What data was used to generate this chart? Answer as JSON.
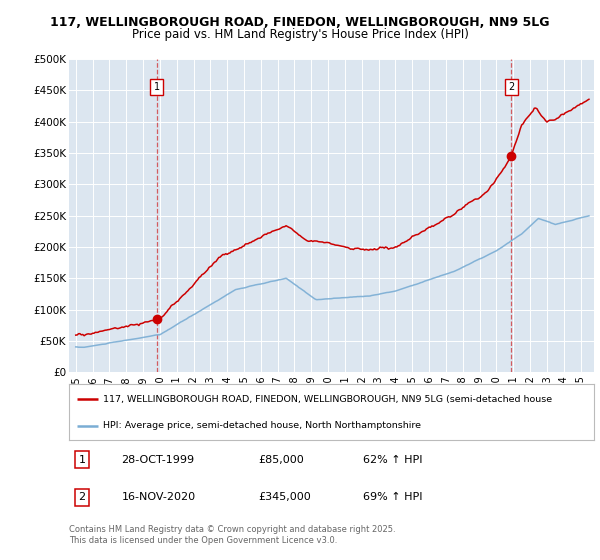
{
  "title_line1": "117, WELLINGBOROUGH ROAD, FINEDON, WELLINGBOROUGH, NN9 5LG",
  "title_line2": "Price paid vs. HM Land Registry's House Price Index (HPI)",
  "plot_bg_color": "#dce6f0",
  "ylim": [
    0,
    500000
  ],
  "yticks": [
    0,
    50000,
    100000,
    150000,
    200000,
    250000,
    300000,
    350000,
    400000,
    450000,
    500000
  ],
  "ytick_labels": [
    "£0",
    "£50K",
    "£100K",
    "£150K",
    "£200K",
    "£250K",
    "£300K",
    "£350K",
    "£400K",
    "£450K",
    "£500K"
  ],
  "xlim_start": 1994.6,
  "xlim_end": 2025.8,
  "xtick_years": [
    1995,
    1996,
    1997,
    1998,
    1999,
    2000,
    2001,
    2002,
    2003,
    2004,
    2005,
    2006,
    2007,
    2008,
    2009,
    2010,
    2011,
    2012,
    2013,
    2014,
    2015,
    2016,
    2017,
    2018,
    2019,
    2020,
    2021,
    2022,
    2023,
    2024,
    2025
  ],
  "purchase1_x": 1999.82,
  "purchase1_y": 85000,
  "purchase2_x": 2020.88,
  "purchase2_y": 345000,
  "red_color": "#cc0000",
  "blue_color": "#7aadd4",
  "legend_line1": "117, WELLINGBOROUGH ROAD, FINEDON, WELLINGBOROUGH, NN9 5LG (semi-detached house",
  "legend_line2": "HPI: Average price, semi-detached house, North Northamptonshire",
  "ann1_date": "28-OCT-1999",
  "ann1_price": "£85,000",
  "ann1_hpi": "62% ↑ HPI",
  "ann2_date": "16-NOV-2020",
  "ann2_price": "£345,000",
  "ann2_hpi": "69% ↑ HPI",
  "footer": "Contains HM Land Registry data © Crown copyright and database right 2025.\nThis data is licensed under the Open Government Licence v3.0."
}
